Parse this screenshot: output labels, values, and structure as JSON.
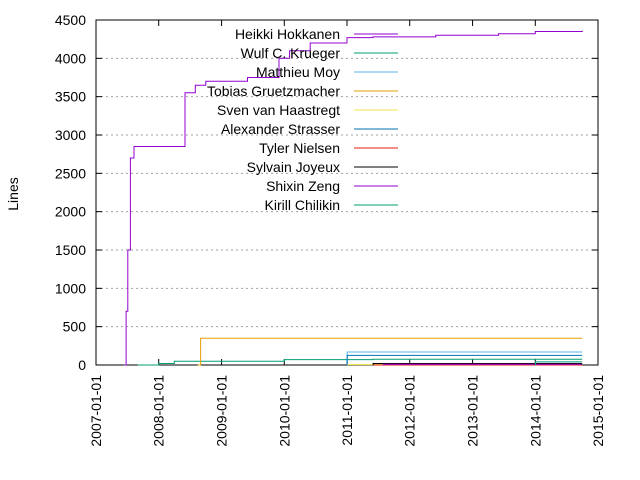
{
  "chart_data": {
    "type": "line",
    "title": "",
    "xlabel": "",
    "ylabel": "Lines",
    "x_ticks": [
      "2007-01-01",
      "2008-01-01",
      "2009-01-01",
      "2010-01-01",
      "2011-01-01",
      "2012-01-01",
      "2013-01-01",
      "2014-01-01",
      "2015-01-01"
    ],
    "y_ticks": [
      0,
      500,
      1000,
      1500,
      2000,
      2500,
      3000,
      3500,
      4000,
      4500
    ],
    "xlim": [
      "2007-01-01",
      "2015-01-01"
    ],
    "ylim": [
      0,
      4500
    ],
    "grid": "horizontal dotted",
    "legend_position": "top-right",
    "series": [
      {
        "name": "Heikki Hokkanen",
        "color": "#9400d3",
        "points": [
          [
            "2007-06-15",
            0
          ],
          [
            "2007-06-25",
            700
          ],
          [
            "2007-07-05",
            1500
          ],
          [
            "2007-07-20",
            2700
          ],
          [
            "2007-08-10",
            2850
          ],
          [
            "2008-06-01",
            2850
          ],
          [
            "2008-06-02",
            3550
          ],
          [
            "2008-08-01",
            3650
          ],
          [
            "2008-10-01",
            3700
          ],
          [
            "2009-06-01",
            3750
          ],
          [
            "2009-12-01",
            4000
          ],
          [
            "2010-02-01",
            4100
          ],
          [
            "2010-06-01",
            4200
          ],
          [
            "2011-01-01",
            4270
          ],
          [
            "2011-06-01",
            4280
          ],
          [
            "2012-06-01",
            4300
          ],
          [
            "2013-06-01",
            4320
          ],
          [
            "2014-01-01",
            4350
          ],
          [
            "2014-10-01",
            4360
          ]
        ]
      },
      {
        "name": "Wulf C. Krueger",
        "color": "#009e73",
        "points": [
          [
            "2007-09-01",
            0
          ],
          [
            "2008-01-01",
            20
          ],
          [
            "2008-04-01",
            50
          ],
          [
            "2010-01-01",
            55
          ],
          [
            "2010-01-02",
            70
          ],
          [
            "2011-01-01",
            70
          ],
          [
            "2011-06-01",
            75
          ],
          [
            "2014-10-01",
            75
          ]
        ]
      },
      {
        "name": "Matthieu Moy",
        "color": "#56b4e9",
        "points": [
          [
            "2011-01-01",
            0
          ],
          [
            "2011-01-02",
            170
          ],
          [
            "2014-10-01",
            170
          ]
        ]
      },
      {
        "name": "Tobias Gruetzmacher",
        "color": "#e69f00",
        "points": [
          [
            "2008-08-15",
            0
          ],
          [
            "2008-09-01",
            350
          ],
          [
            "2014-10-01",
            350
          ]
        ]
      },
      {
        "name": "Sven van Haastregt",
        "color": "#f0e442",
        "points": [
          [
            "2011-01-01",
            0
          ],
          [
            "2011-01-02",
            5
          ],
          [
            "2014-10-01",
            5
          ]
        ]
      },
      {
        "name": "Alexander Strasser",
        "color": "#0072b2",
        "points": [
          [
            "2011-01-01",
            0
          ],
          [
            "2011-01-02",
            125
          ],
          [
            "2014-10-01",
            125
          ]
        ]
      },
      {
        "name": "Tyler Nielsen",
        "color": "#e51e10",
        "points": [
          [
            "2011-06-01",
            0
          ],
          [
            "2014-10-01",
            0
          ]
        ]
      },
      {
        "name": "Sylvain Joyeux",
        "color": "#000000",
        "points": [
          [
            "2011-06-01",
            0
          ],
          [
            "2011-06-02",
            20
          ],
          [
            "2014-10-01",
            20
          ]
        ]
      },
      {
        "name": "Shixin Zeng",
        "color": "#9400d3",
        "points": [
          [
            "2011-08-01",
            0
          ],
          [
            "2011-08-02",
            10
          ],
          [
            "2014-10-01",
            10
          ]
        ]
      },
      {
        "name": "Kirill Chilikin",
        "color": "#009e73",
        "points": [
          [
            "2014-01-01",
            0
          ],
          [
            "2014-01-02",
            40
          ],
          [
            "2014-10-01",
            40
          ]
        ]
      }
    ]
  }
}
